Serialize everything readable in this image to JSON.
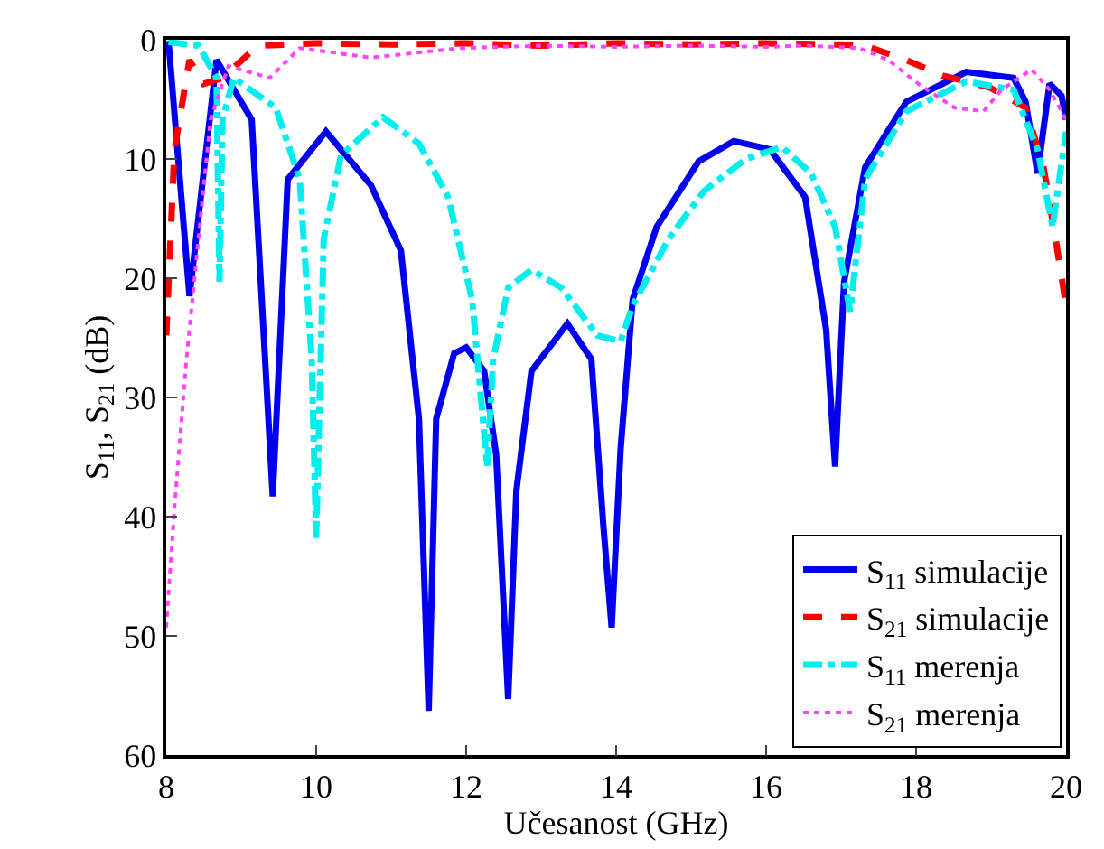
{
  "chart_data": {
    "type": "line",
    "xlabel": "Učesanost (GHz)",
    "ylabel": "S$_{11}$, S$_{21}$ (dB)",
    "xlim": [
      8,
      20
    ],
    "xticks": [
      8,
      10,
      12,
      14,
      16,
      18,
      20
    ],
    "ylim": [
      60,
      0
    ],
    "yticks": [
      0,
      10,
      20,
      30,
      40,
      50,
      60
    ],
    "legend": "bottom right",
    "marker": "none",
    "series": [
      {
        "name": "S$_{11}$ simulacije",
        "color": "#0000ee",
        "line_style": "solid",
        "x": [
          8.03,
          8.31,
          8.67,
          9.14,
          9.42,
          9.62,
          10.13,
          10.73,
          11.13,
          11.37,
          11.5,
          11.6,
          11.84,
          12.0,
          12.24,
          12.4,
          12.56,
          12.67,
          12.87,
          13.35,
          13.67,
          13.83,
          13.94,
          14.06,
          14.22,
          14.54,
          15.1,
          15.57,
          16.05,
          16.52,
          16.8,
          16.92,
          17.04,
          17.32,
          17.87,
          18.67,
          19.3,
          19.46,
          19.62,
          19.78,
          19.94,
          20.0
        ],
        "values": [
          0.1,
          21.5,
          1.7,
          6.7,
          38.3,
          11.7,
          7.7,
          12.2,
          17.7,
          31.8,
          56.3,
          31.8,
          26.3,
          25.8,
          27.8,
          34.8,
          55.3,
          37.8,
          27.8,
          23.8,
          26.8,
          40.8,
          49.3,
          34.3,
          21.8,
          15.7,
          10.2,
          8.5,
          9.2,
          13.2,
          24.3,
          35.8,
          20.3,
          10.7,
          5.2,
          2.7,
          3.2,
          5.2,
          11.2,
          3.7,
          4.7,
          6.7
        ]
      },
      {
        "name": "S$_{21}$ simulacije",
        "color": "#ff0000",
        "line_style": "dashed",
        "x": [
          8.0,
          8.11,
          8.31,
          8.5,
          8.75,
          9.22,
          10.0,
          11.0,
          12.0,
          13.0,
          14.0,
          15.0,
          16.0,
          17.0,
          17.32,
          17.87,
          18.35,
          18.98,
          19.46,
          19.7,
          19.86,
          20.0
        ],
        "values": [
          24.8,
          9.2,
          1.7,
          3.7,
          3.2,
          0.5,
          0.3,
          0.4,
          0.3,
          0.5,
          0.3,
          0.4,
          0.3,
          0.4,
          0.5,
          1.7,
          3.0,
          4.0,
          5.7,
          10.7,
          16.7,
          22.3
        ]
      },
      {
        "name": "S$_{11}$ merenja",
        "color": "#00eeee",
        "line_style": "dashdot",
        "x": [
          8.03,
          8.43,
          8.67,
          8.71,
          8.75,
          8.9,
          9.46,
          9.78,
          9.94,
          10.0,
          10.1,
          10.33,
          10.89,
          11.37,
          11.76,
          12.08,
          12.28,
          12.36,
          12.56,
          12.87,
          13.27,
          13.75,
          14.06,
          14.22,
          14.7,
          15.17,
          15.73,
          16.21,
          16.6,
          16.92,
          17.12,
          17.32,
          17.87,
          18.67,
          19.3,
          19.62,
          19.82,
          20.0
        ],
        "values": [
          0.2,
          0.5,
          3.2,
          20.3,
          6.7,
          3.2,
          5.7,
          11.7,
          26.8,
          41.8,
          16.7,
          9.7,
          6.5,
          8.7,
          13.2,
          21.8,
          35.8,
          26.8,
          20.8,
          19.3,
          20.8,
          24.8,
          25.3,
          22.3,
          16.7,
          12.7,
          10.0,
          9.0,
          11.2,
          15.7,
          22.8,
          11.7,
          6.0,
          3.5,
          4.2,
          9.2,
          15.7,
          7.7
        ]
      },
      {
        "name": "S$_{21}$ merenja",
        "color": "#ff44ff",
        "line_style": "dotted",
        "x": [
          8.0,
          8.11,
          8.27,
          8.43,
          8.59,
          8.83,
          9.38,
          9.78,
          10.73,
          11.92,
          13.0,
          14.0,
          15.0,
          16.0,
          16.5,
          17.24,
          17.63,
          18.03,
          18.51,
          18.9,
          19.14,
          19.54,
          19.78,
          20.0
        ],
        "values": [
          49.3,
          39.3,
          26.8,
          16.7,
          6.7,
          2.2,
          3.2,
          0.7,
          1.5,
          0.7,
          0.5,
          0.6,
          0.5,
          0.6,
          0.5,
          0.7,
          1.7,
          3.7,
          5.7,
          6.0,
          4.2,
          2.5,
          4.2,
          6.7
        ]
      }
    ]
  }
}
